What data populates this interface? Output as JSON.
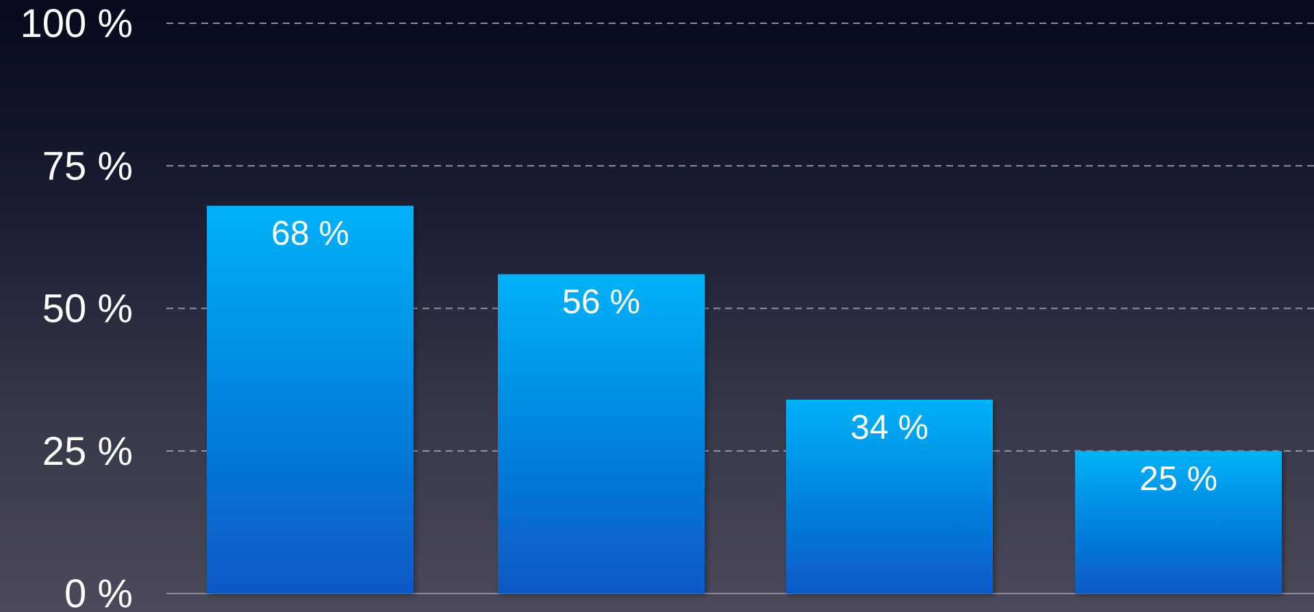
{
  "chart_data": {
    "type": "bar",
    "categories": [
      "",
      "",
      "",
      ""
    ],
    "values": [
      68,
      56,
      34,
      25
    ],
    "data_labels": [
      "68 %",
      "56 %",
      "34 %",
      "25 %"
    ],
    "ylim": [
      0,
      100
    ],
    "y_ticks": [
      0,
      25,
      50,
      75,
      100
    ],
    "y_tick_labels": [
      "0 %",
      "25 %",
      "50 %",
      "75 %",
      "100 %"
    ],
    "grid": true,
    "legend": "none",
    "title": "",
    "xlabel": "",
    "ylabel": ""
  },
  "colors": {
    "bar_top": "#02b2f7",
    "bar_bottom": "#0858c6",
    "text": "#ffffff"
  }
}
